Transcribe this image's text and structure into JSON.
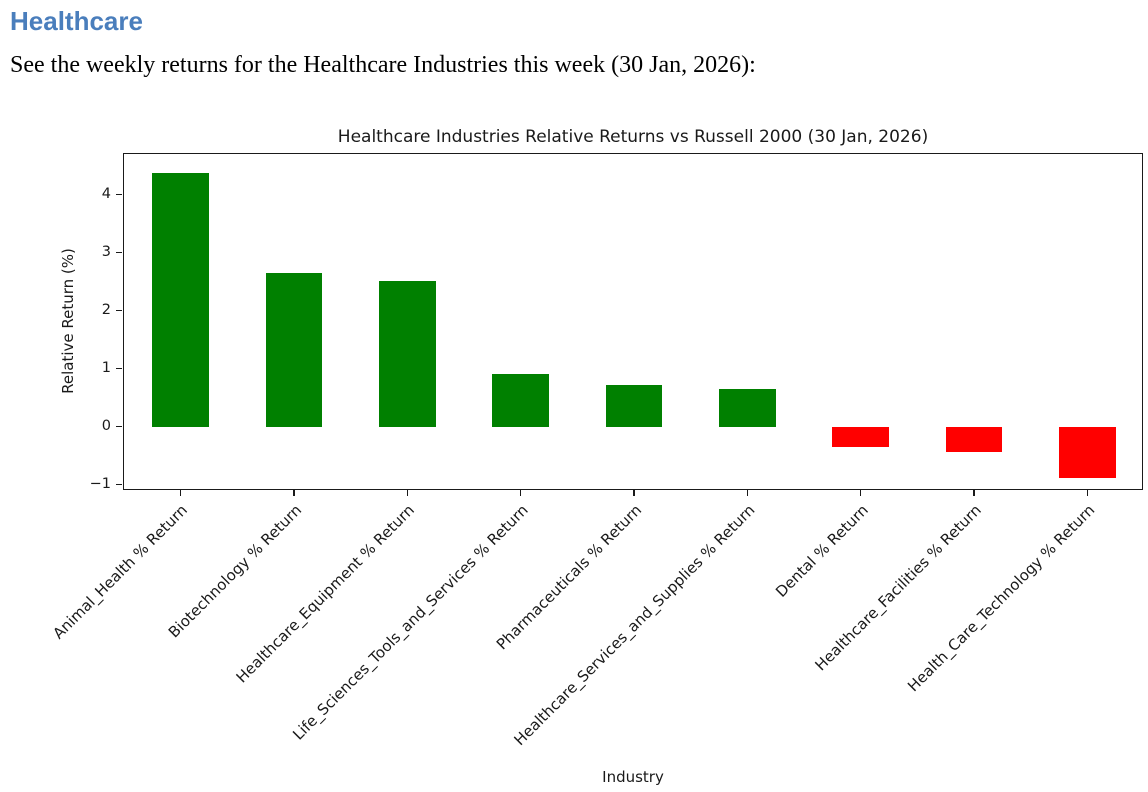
{
  "header": {
    "title": "Healthcare",
    "color": "#4a7ebc"
  },
  "intro": {
    "text": "See the weekly returns for the Healthcare Industries this week (30 Jan, 2026):"
  },
  "chart_data": {
    "type": "bar",
    "title": "Healthcare Industries Relative Returns vs Russell 2000 (30 Jan, 2026)",
    "xlabel": "Industry",
    "ylabel": "Relative Return (%)",
    "categories": [
      "Animal_Health % Return",
      "Biotechnology % Return",
      "Healthcare_Equipment % Return",
      "Life_Sciences_Tools_and_Services % Return",
      "Pharmaceuticals % Return",
      "Healthcare_Services_and_Supplies % Return",
      "Dental % Return",
      "Healthcare_Facilities % Return",
      "Health_Care_Technology % Return"
    ],
    "values": [
      4.38,
      2.64,
      2.51,
      0.9,
      0.72,
      0.65,
      -0.35,
      -0.44,
      -0.89
    ],
    "ylim": [
      -1.11,
      4.7
    ],
    "yticks": [
      -1,
      0,
      1,
      2,
      3,
      4
    ],
    "ytick_labels": [
      "−1",
      "0",
      "1",
      "2",
      "3",
      "4"
    ],
    "grid": false,
    "legend": "none",
    "bar_width_fraction": 0.5,
    "x_label_rotation_deg": 45,
    "colors": {
      "positive": "#008000",
      "negative": "#ff0000"
    }
  }
}
